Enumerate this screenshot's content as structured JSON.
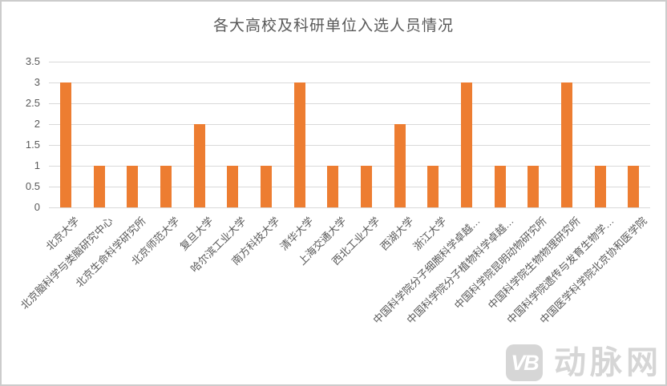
{
  "title": "各大高校及科研单位入选人员情况",
  "watermark": {
    "logo_text": "VB",
    "brand_text": "动脉网"
  },
  "colors": {
    "bar": "#ED7D31",
    "gridline": "#D9D9D9",
    "axis_text": "#595959",
    "title_text": "#595959",
    "watermark": "#D6D6D6",
    "frame_border": "#CCCCCC",
    "background": "#FFFFFF"
  },
  "chart_data": {
    "type": "bar",
    "title": "各大高校及科研单位入选人员情况",
    "categories": [
      "北京大学",
      "北京脑科学与类脑研究中心",
      "北京生命科学研究所",
      "北京师范大学",
      "复旦大学",
      "哈尔滨工业大学",
      "南方科技大学",
      "清华大学",
      "上海交通大学",
      "西北工业大学",
      "西湖大学",
      "浙江大学",
      "中国科学院分子细胞科学卓越…",
      "中国科学院分子植物科学卓越…",
      "中国科学院昆明动物研究所",
      "中国科学院生物物理研究所",
      "中国科学院遗传与发育生物学…",
      "中国医学科学院北京协和医学院"
    ],
    "values": [
      3,
      1,
      1,
      1,
      2,
      1,
      1,
      3,
      1,
      1,
      2,
      1,
      3,
      1,
      1,
      3,
      1,
      1
    ],
    "xlabel": "",
    "ylabel": "",
    "ylim": [
      0,
      3.5
    ],
    "yticks": [
      0,
      0.5,
      1,
      1.5,
      2,
      2.5,
      3,
      3.5
    ],
    "grid": true,
    "legend": false,
    "bar_color": "#ED7D31",
    "xlabel_rotation_deg": 45
  }
}
